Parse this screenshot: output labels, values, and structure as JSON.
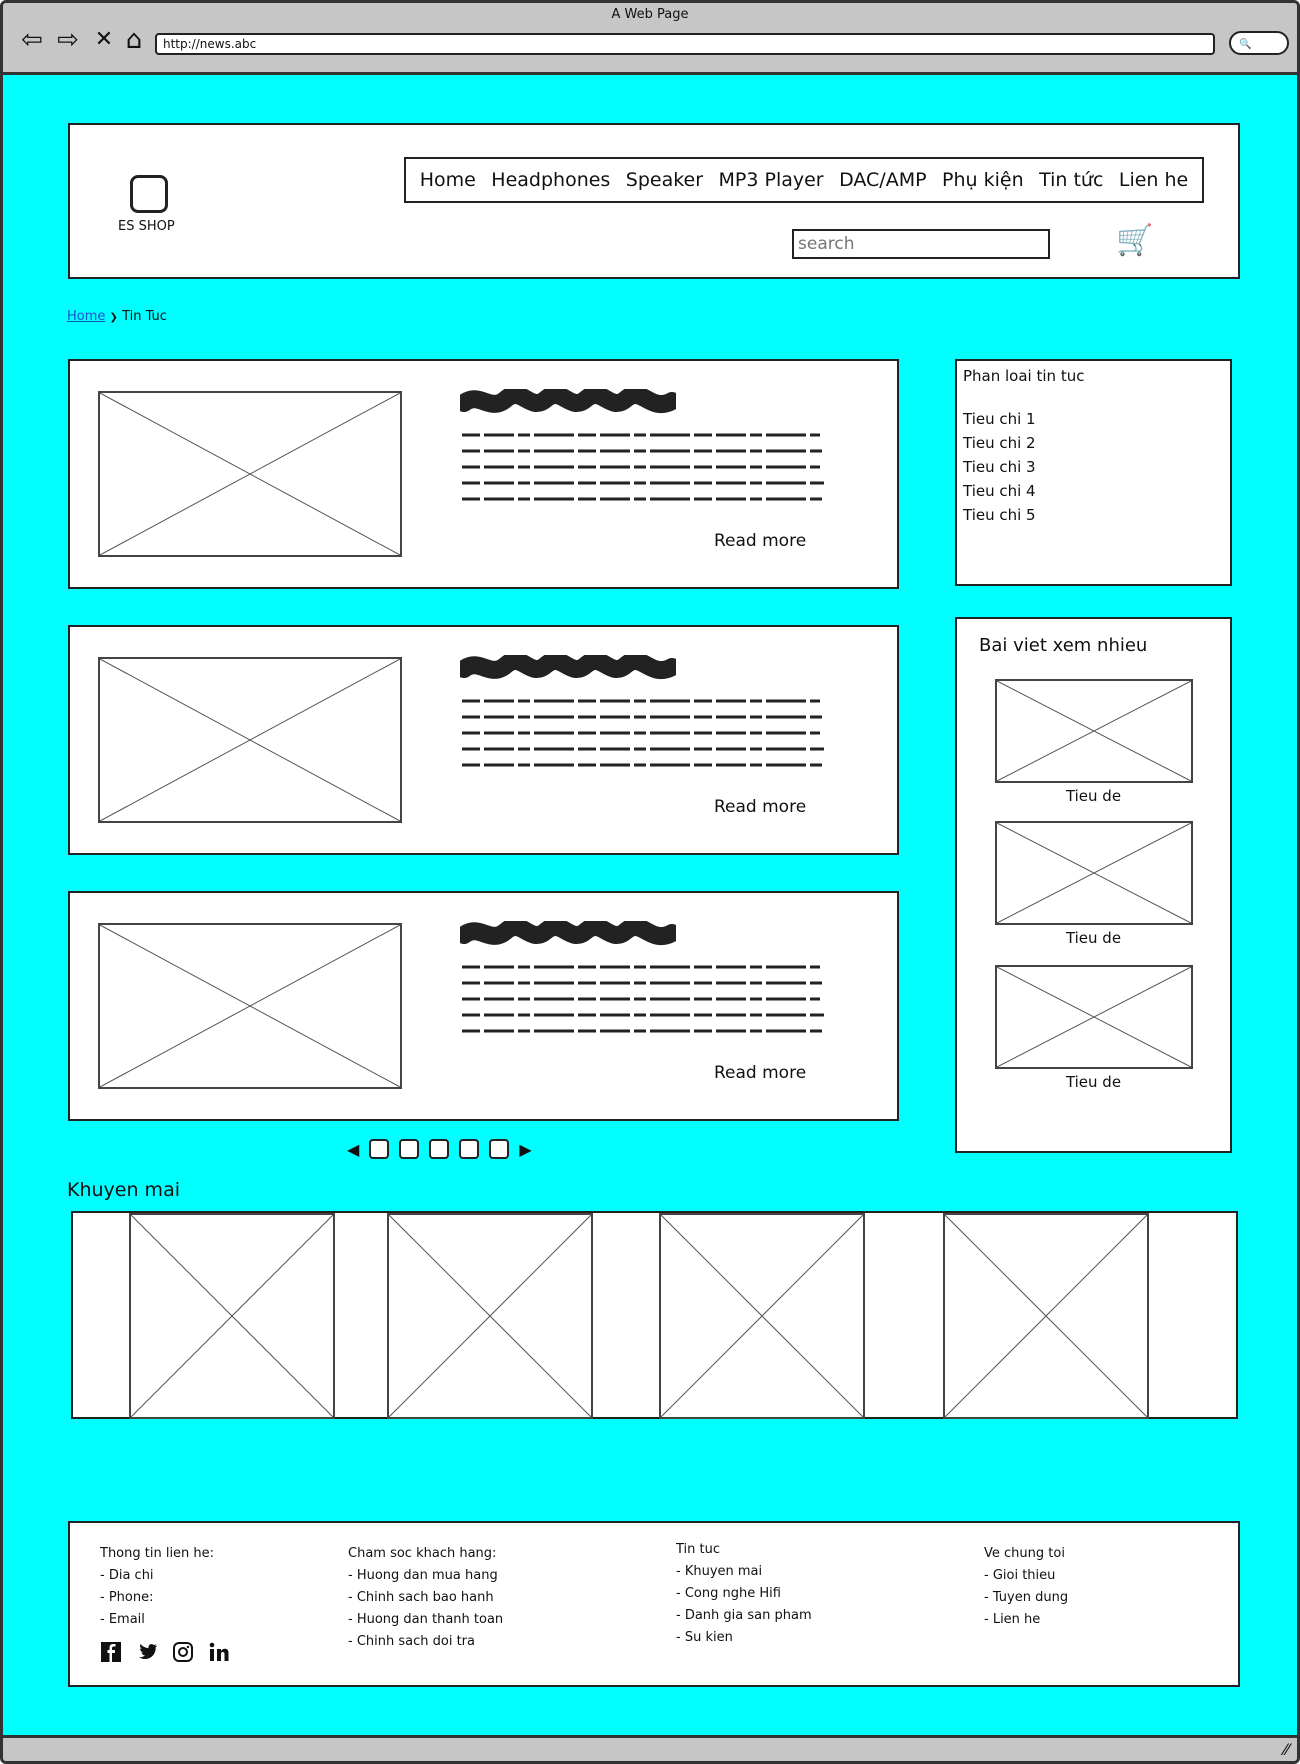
{
  "browser": {
    "title": "A Web Page",
    "url": "http://news.abc",
    "back_icon": "⇦",
    "forward_icon": "⇨",
    "stop_icon": "✕",
    "home_icon": "⌂",
    "search_icon": "🔍"
  },
  "header": {
    "logo_text": "ES SHOP",
    "menu": [
      "Home",
      "Headphones",
      "Speaker",
      "MP3 Player",
      "DAC/AMP",
      "Phụ kiện",
      "Tin tức",
      "Lien he"
    ],
    "search_placeholder": "search",
    "cart_icon": "🛒"
  },
  "breadcrumb": {
    "home": "Home",
    "separator": "❯",
    "current": "Tin Tuc"
  },
  "posts": [
    {
      "read_more": "Read more"
    },
    {
      "read_more": "Read more"
    },
    {
      "read_more": "Read more"
    }
  ],
  "categories": {
    "title": "Phan loai tin tuc",
    "items": [
      "Tieu chi 1",
      "Tieu chi 2",
      "Tieu chi 3",
      "Tieu chi 4",
      "Tieu chi 5"
    ]
  },
  "popular": {
    "title": "Bai viet xem nhieu",
    "items": [
      {
        "label": "Tieu de"
      },
      {
        "label": "Tieu de"
      },
      {
        "label": "Tieu de"
      }
    ]
  },
  "pagination": {
    "prev": "◀",
    "next": "▶",
    "pages": 5
  },
  "promo": {
    "title": "Khuyen mai"
  },
  "footer": {
    "col1": {
      "title": "Thong tin lien he:",
      "items": [
        "- Dia chi",
        "- Phone:",
        "- Email"
      ]
    },
    "col2": {
      "title": "Cham soc khach hang:",
      "items": [
        "- Huong dan mua hang",
        "- Chinh sach bao hanh",
        "- Huong dan thanh toan",
        "- Chinh sach doi tra"
      ]
    },
    "col3": {
      "title": "Tin tuc",
      "items": [
        "- Khuyen mai",
        "- Cong nghe Hifi",
        "- Danh gia san pham",
        "- Su kien"
      ]
    },
    "col4": {
      "title": "Ve chung toi",
      "items": [
        "- Gioi thieu",
        "- Tuyen dung",
        "- Lien he"
      ]
    },
    "social": [
      "facebook-icon",
      "twitter-icon",
      "instagram-icon",
      "linkedin-icon"
    ]
  },
  "status": {
    "grip_icon": "⁄⁄"
  }
}
